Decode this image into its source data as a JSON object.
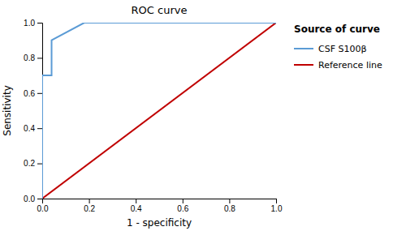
{
  "chart_data": {
    "type": "line",
    "title": "ROC curve",
    "xlabel": "1 - specificity",
    "ylabel": "Sensitivity",
    "series": [
      {
        "name": "CSF S100β",
        "color": "#5b9bd5",
        "x": [
          0.0,
          0.0,
          0.04,
          0.04,
          0.18,
          1.0
        ],
        "values": [
          0.0,
          0.7,
          0.7,
          0.9,
          1.0,
          1.0
        ]
      },
      {
        "name": "Reference line",
        "color": "#c00000",
        "x": [
          0.0,
          1.0
        ],
        "values": [
          0.0,
          1.0
        ]
      }
    ],
    "xlim": [
      0.0,
      1.0
    ],
    "ylim": [
      0.0,
      1.0
    ],
    "xticks": [
      {
        "value": 0.0,
        "label": "0.0"
      },
      0.2,
      0.4,
      0.6,
      0.8,
      {
        "value": 1.0,
        "label": "1.0"
      }
    ],
    "yticks": [
      {
        "value": 0.0,
        "label": "0.0"
      },
      0.2,
      0.4,
      0.6,
      0.8,
      {
        "value": 1.0,
        "label": "1.0"
      }
    ],
    "legend_title": "Source of curve",
    "legend": "right",
    "grid": false
  }
}
